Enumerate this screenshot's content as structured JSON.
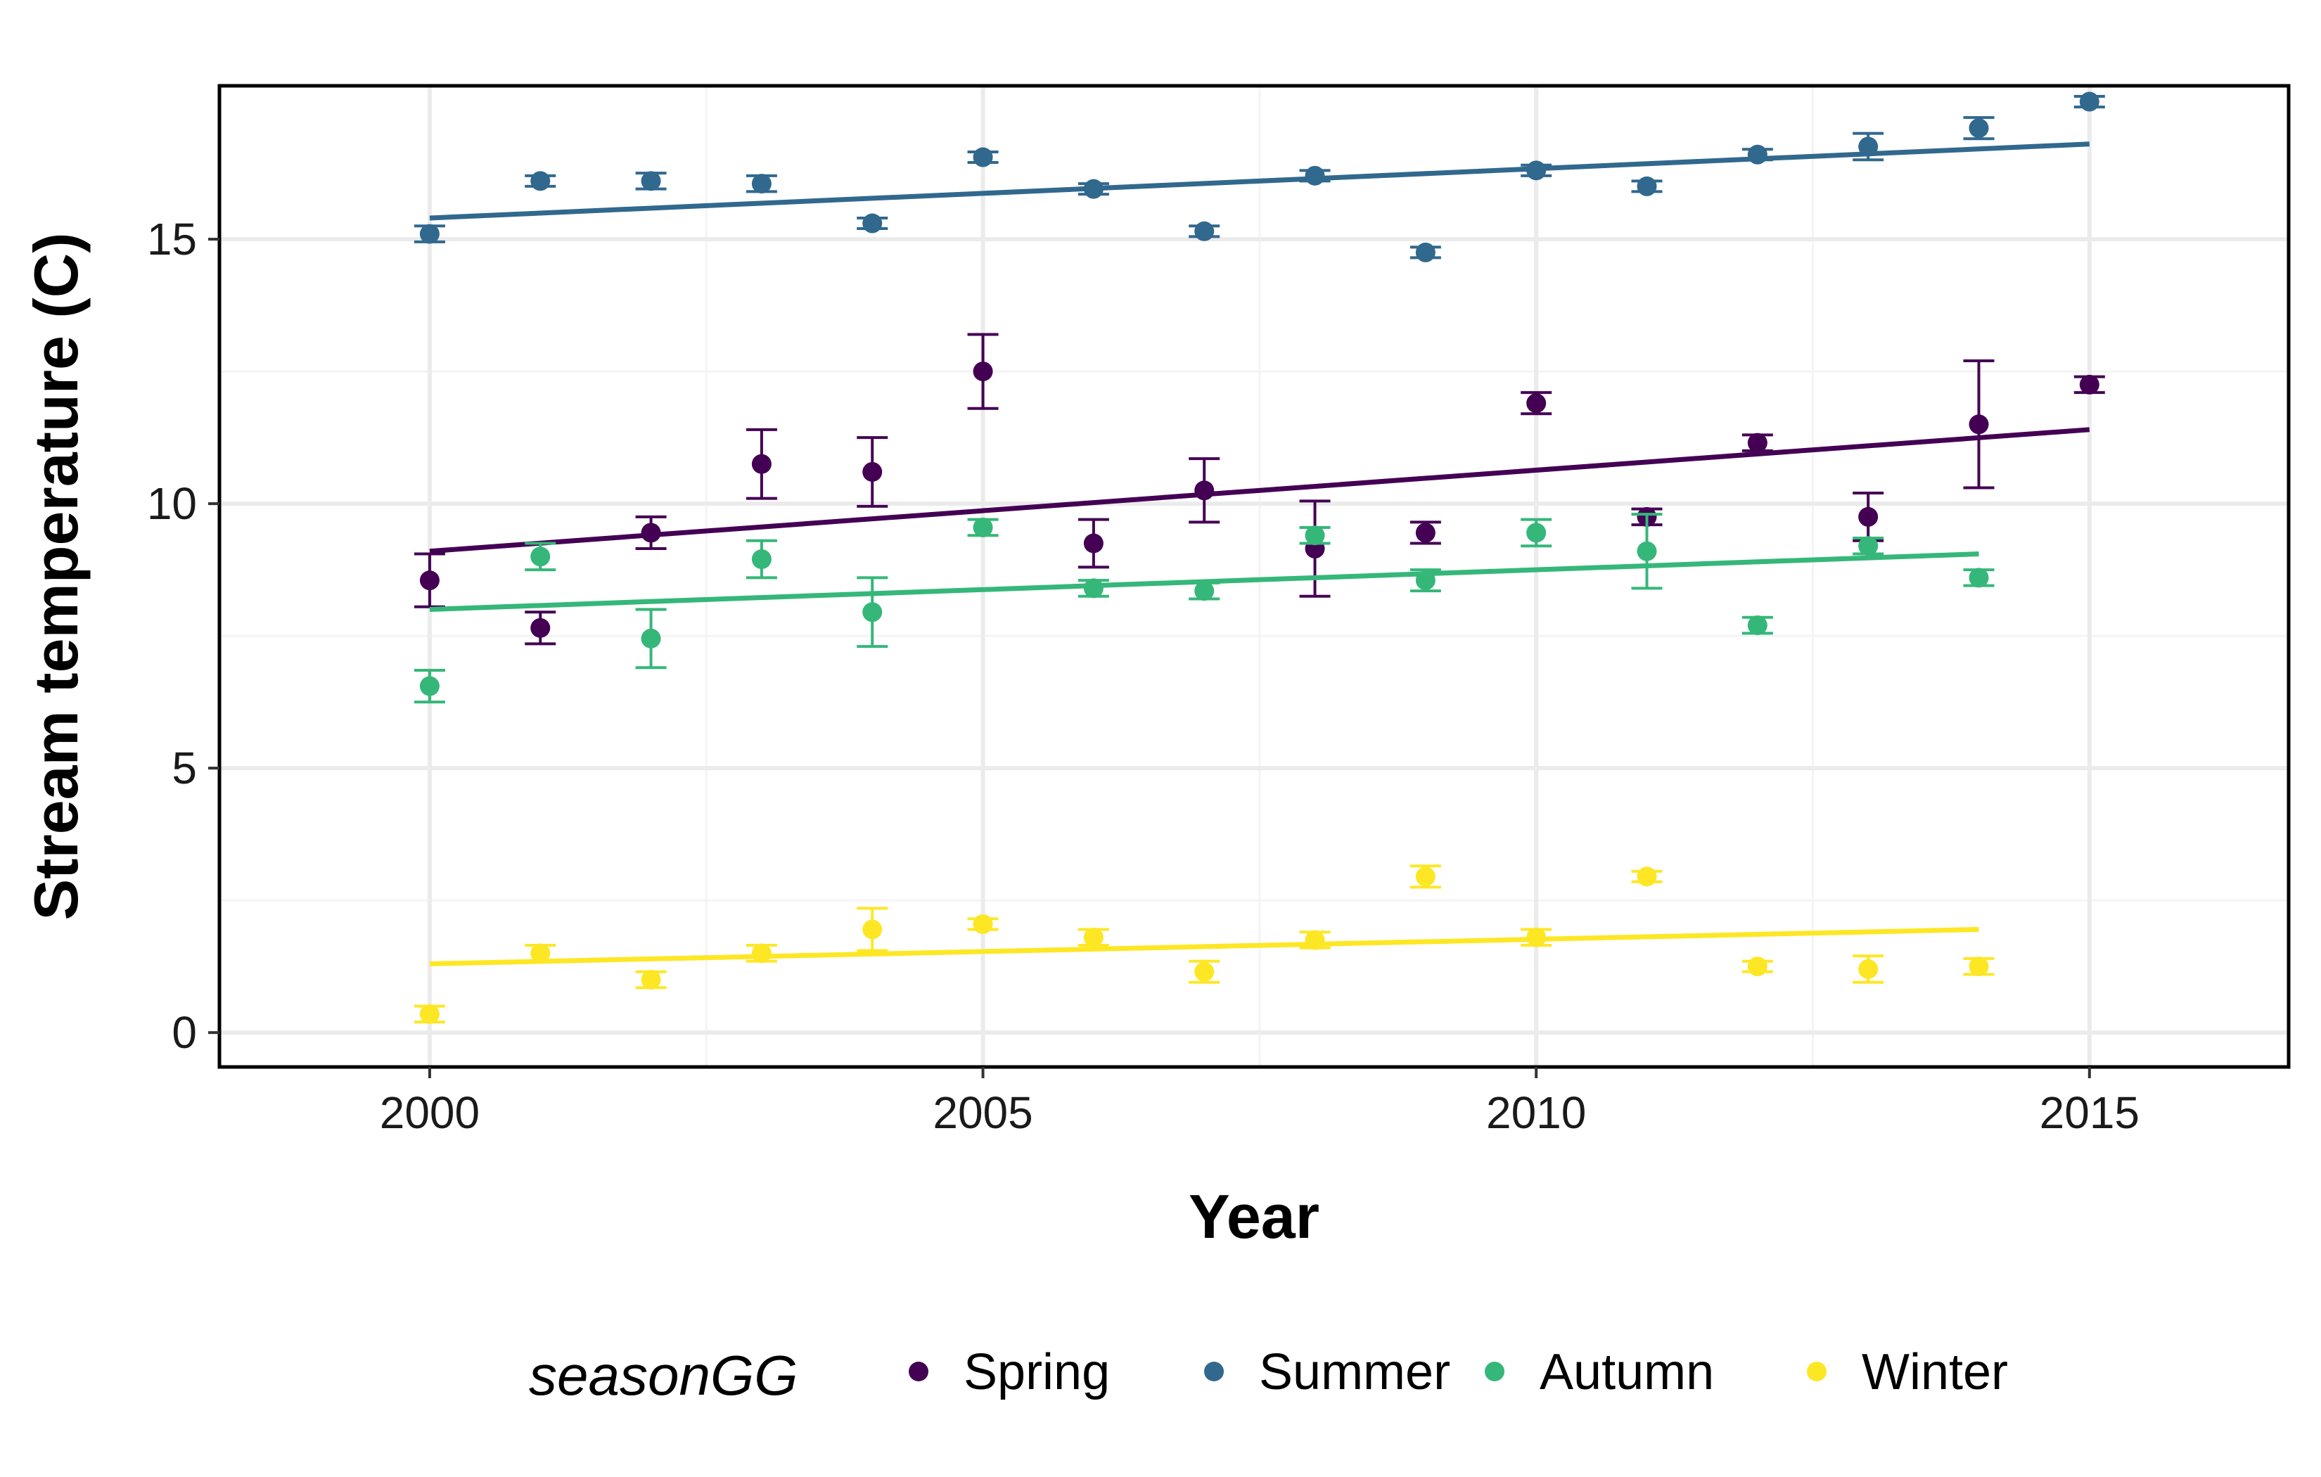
{
  "chart_data": {
    "type": "scatter",
    "xlabel": "Year",
    "ylabel": "Stream temperature (C)",
    "xlim": [
      1998.1,
      2016.8
    ],
    "ylim": [
      -0.65,
      17.9
    ],
    "xticks": [
      2000,
      2005,
      2010,
      2015
    ],
    "xtick_labels": [
      "2000",
      "2005",
      "2010",
      "2015"
    ],
    "yticks": [
      0,
      5,
      10,
      15
    ],
    "ytick_labels": [
      "0",
      "5",
      "10",
      "15"
    ],
    "grid": true,
    "legend": {
      "title": "seasonGG",
      "position": "bottom"
    },
    "series": [
      {
        "name": "Spring",
        "color": "#440154",
        "x": [
          2000,
          2001,
          2002,
          2003,
          2004,
          2005,
          2006,
          2007,
          2008,
          2009,
          2010,
          2011,
          2012,
          2013,
          2014,
          2015
        ],
        "y": [
          8.55,
          7.65,
          9.45,
          10.75,
          10.6,
          12.5,
          9.25,
          10.25,
          9.15,
          9.45,
          11.9,
          9.75,
          11.15,
          9.75,
          11.5,
          12.25
        ],
        "err": [
          0.5,
          0.3,
          0.3,
          0.65,
          0.65,
          0.7,
          0.45,
          0.6,
          0.9,
          0.2,
          0.2,
          0.15,
          0.15,
          0.45,
          1.2,
          0.15
        ],
        "trend": [
          [
            2000,
            9.1
          ],
          [
            2015,
            11.4
          ]
        ]
      },
      {
        "name": "Summer",
        "color": "#31688e",
        "x": [
          2000,
          2001,
          2002,
          2003,
          2004,
          2005,
          2006,
          2007,
          2008,
          2009,
          2010,
          2011,
          2012,
          2013,
          2014,
          2015
        ],
        "y": [
          15.1,
          16.1,
          16.1,
          16.05,
          15.3,
          16.55,
          15.95,
          15.15,
          16.2,
          14.75,
          16.3,
          16.0,
          16.6,
          16.75,
          17.1,
          17.6
        ],
        "err": [
          0.15,
          0.1,
          0.15,
          0.15,
          0.1,
          0.1,
          0.1,
          0.1,
          0.1,
          0.1,
          0.1,
          0.1,
          0.1,
          0.25,
          0.2,
          0.1
        ],
        "trend": [
          [
            2000,
            15.4
          ],
          [
            2015,
            16.8
          ]
        ]
      },
      {
        "name": "Autumn",
        "color": "#35b779",
        "x": [
          2000,
          2001,
          2002,
          2003,
          2004,
          2005,
          2006,
          2007,
          2008,
          2009,
          2010,
          2011,
          2012,
          2013,
          2014
        ],
        "y": [
          6.55,
          9.0,
          7.45,
          8.95,
          7.95,
          9.55,
          8.4,
          8.35,
          9.4,
          8.55,
          9.45,
          9.1,
          7.7,
          9.2,
          8.6
        ],
        "err": [
          0.3,
          0.25,
          0.55,
          0.35,
          0.65,
          0.15,
          0.15,
          0.15,
          0.15,
          0.2,
          0.25,
          0.7,
          0.15,
          0.15,
          0.15
        ],
        "trend": [
          [
            2000,
            8.0
          ],
          [
            2014,
            9.05
          ]
        ]
      },
      {
        "name": "Winter",
        "color": "#fde725",
        "x": [
          2000,
          2001,
          2002,
          2003,
          2004,
          2005,
          2006,
          2007,
          2008,
          2009,
          2010,
          2011,
          2012,
          2013,
          2014
        ],
        "y": [
          0.35,
          1.5,
          1.0,
          1.5,
          1.95,
          2.05,
          1.8,
          1.15,
          1.75,
          2.95,
          1.8,
          2.95,
          1.25,
          1.2,
          1.25
        ],
        "err": [
          0.15,
          0.15,
          0.15,
          0.15,
          0.4,
          0.1,
          0.15,
          0.2,
          0.15,
          0.2,
          0.15,
          0.1,
          0.1,
          0.25,
          0.15
        ],
        "trend": [
          [
            2000,
            1.3
          ],
          [
            2014,
            1.95
          ]
        ]
      }
    ]
  }
}
